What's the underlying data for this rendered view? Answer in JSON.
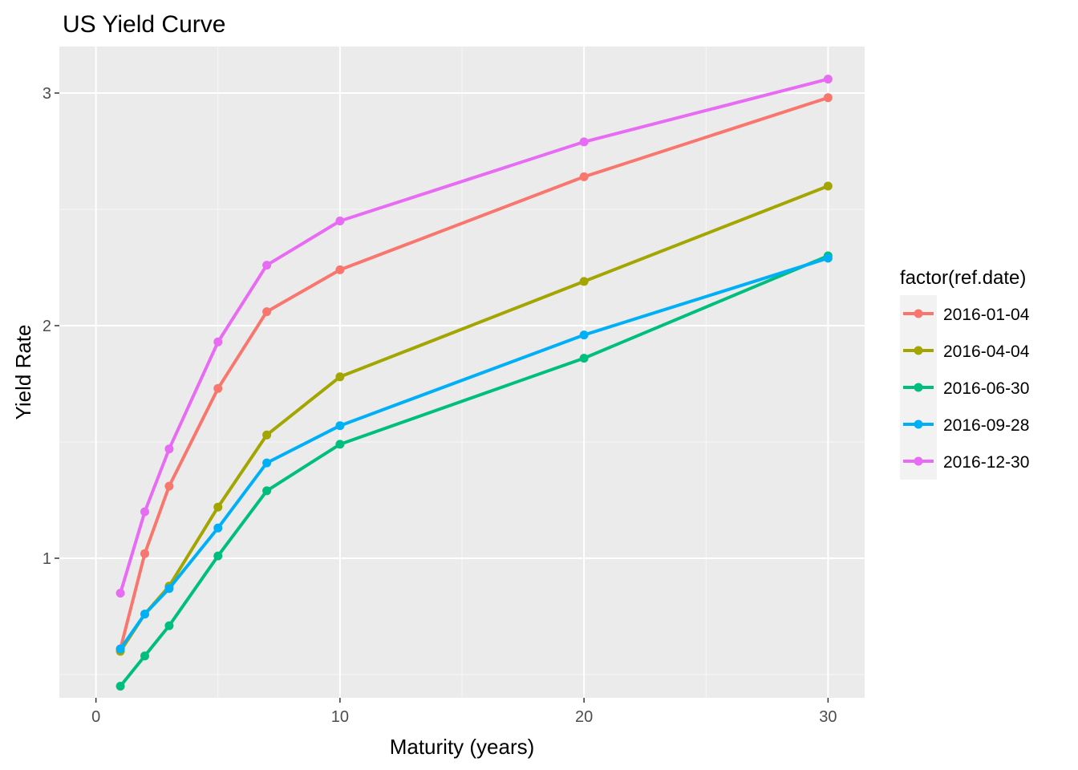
{
  "chart_data": {
    "type": "line",
    "title": "US Yield Curve",
    "xlabel": "Maturity (years)",
    "ylabel": "Yield Rate",
    "xlim": [
      -1.5,
      31.5
    ],
    "ylim": [
      0.4,
      3.2
    ],
    "x_ticks": [
      0,
      10,
      20,
      30
    ],
    "x_tick_labels": [
      "0",
      "10",
      "20",
      "30"
    ],
    "y_ticks": [
      1,
      2,
      3
    ],
    "y_tick_labels": [
      "1",
      "2",
      "3"
    ],
    "x_minor": [
      5,
      15,
      25
    ],
    "y_minor": [
      0.5,
      1.5,
      2.5
    ],
    "grid": true,
    "legend": {
      "title": "factor(ref.date)",
      "position": "right"
    },
    "x": [
      1,
      2,
      3,
      5,
      7,
      10,
      20,
      30
    ],
    "series": [
      {
        "name": "2016-01-04",
        "color": "#F8766D",
        "values": [
          0.61,
          1.02,
          1.31,
          1.73,
          2.06,
          2.24,
          2.64,
          2.98
        ]
      },
      {
        "name": "2016-04-04",
        "color": "#A3A500",
        "values": [
          0.6,
          0.76,
          0.88,
          1.22,
          1.53,
          1.78,
          2.19,
          2.6
        ]
      },
      {
        "name": "2016-06-30",
        "color": "#00BF7D",
        "values": [
          0.45,
          0.58,
          0.71,
          1.01,
          1.29,
          1.49,
          1.86,
          2.3
        ]
      },
      {
        "name": "2016-09-28",
        "color": "#00B0F6",
        "values": [
          0.61,
          0.76,
          0.87,
          1.13,
          1.41,
          1.57,
          1.96,
          2.29
        ]
      },
      {
        "name": "2016-12-30",
        "color": "#E76BF3",
        "values": [
          0.85,
          1.2,
          1.47,
          1.93,
          2.26,
          2.45,
          2.79,
          3.06
        ]
      }
    ]
  }
}
